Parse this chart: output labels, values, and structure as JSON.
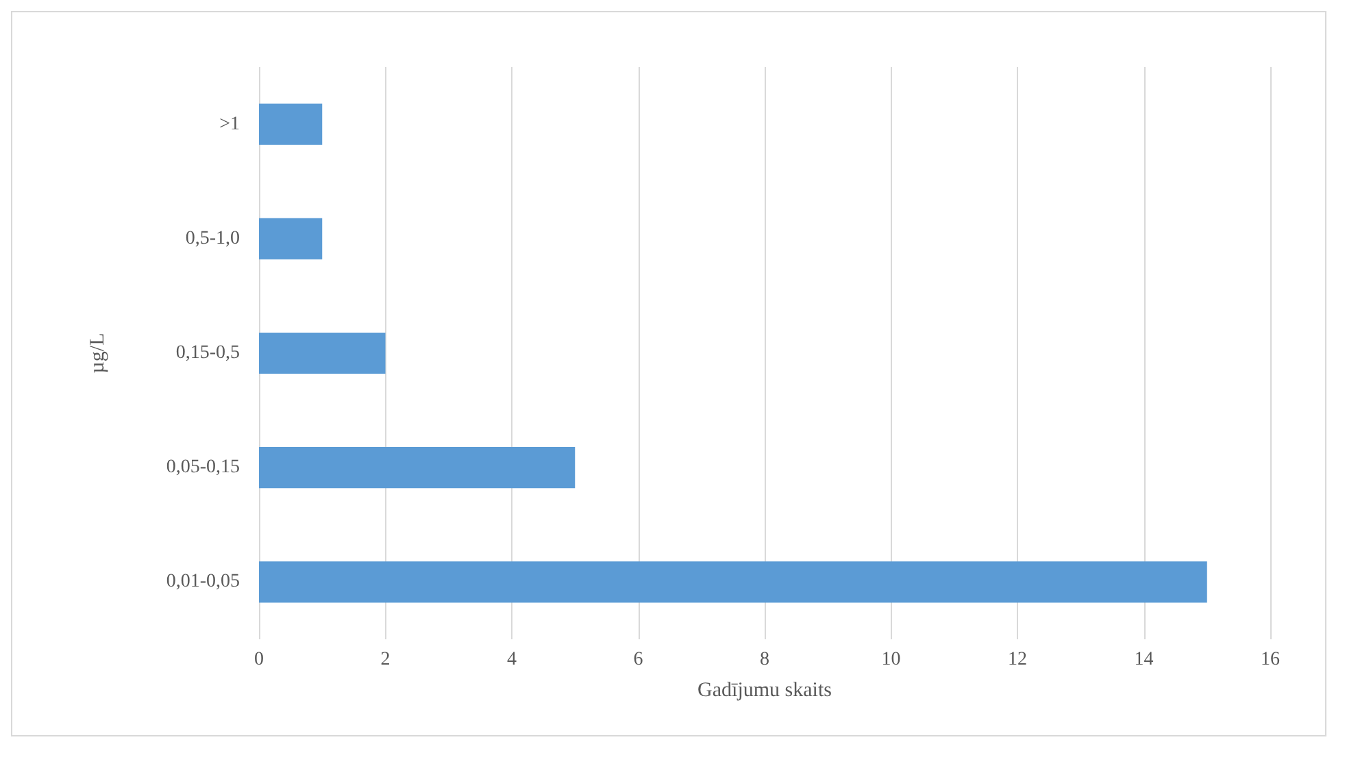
{
  "chart_data": {
    "type": "bar",
    "orientation": "horizontal",
    "categories": [
      ">1",
      "0,5-1,0",
      "0,15-0,5",
      "0,05-0,15",
      "0,01-0,05"
    ],
    "values": [
      1,
      1,
      2,
      5,
      15
    ],
    "color": "#5b9bd5",
    "xlabel": "Gadījumu skaits",
    "ylabel": "µg/L",
    "xlim": [
      0,
      16
    ],
    "xticks": [
      0,
      2,
      4,
      6,
      8,
      10,
      12,
      14,
      16
    ],
    "grid": "x"
  }
}
